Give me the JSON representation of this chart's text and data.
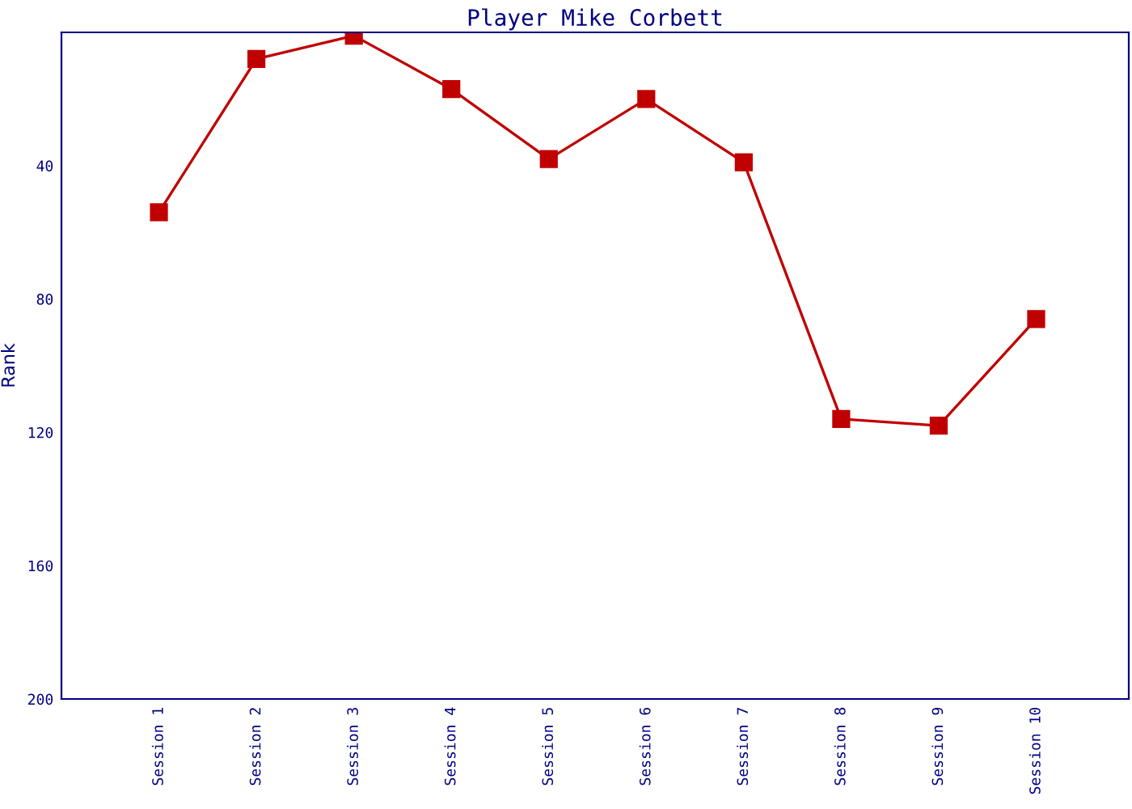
{
  "chart_data": {
    "type": "line",
    "title": "Player Mike Corbett",
    "ylabel": "Rank",
    "categories": [
      "Session 1",
      "Session 2",
      "Session 3",
      "Session 4",
      "Session 5",
      "Session 6",
      "Session 7",
      "Session 8",
      "Session 9",
      "Session 10"
    ],
    "series": [
      {
        "color": "#c00000",
        "values": [
          54,
          8,
          1,
          17,
          38,
          20,
          39,
          116,
          118,
          86
        ]
      }
    ],
    "ylim": [
      200,
      0
    ],
    "yticks": [
      40,
      80,
      120,
      160,
      200
    ],
    "marker": "square",
    "line_style": "solid",
    "grid": false
  }
}
